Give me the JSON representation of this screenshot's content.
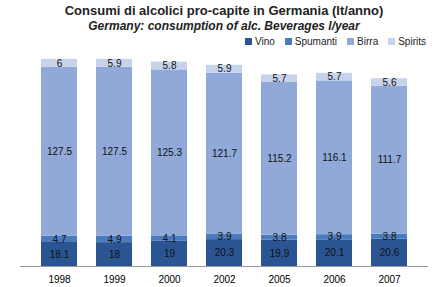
{
  "chart_data": {
    "type": "bar",
    "title": "Consumi di alcolici pro-capite in Germania  (lt/anno)",
    "subtitle": "Germany: consumption of alc. Beverages l/year",
    "categories": [
      "1998",
      "1999",
      "2000",
      "2002",
      "2005",
      "2006",
      "2007"
    ],
    "series": [
      {
        "name": "Vino",
        "color": "#2a5592",
        "values": [
          18.1,
          18,
          19,
          20.3,
          19.9,
          20.1,
          20.6
        ]
      },
      {
        "name": "Spumanti",
        "color": "#4a7bbd",
        "values": [
          4.7,
          4.9,
          4.1,
          3.9,
          3.8,
          3.9,
          3.8
        ]
      },
      {
        "name": "Birra",
        "color": "#90a9d8",
        "values": [
          127.5,
          127.5,
          125.3,
          121.7,
          115.2,
          116.1,
          111.7
        ]
      },
      {
        "name": "Spirits",
        "color": "#c6d3ea",
        "values": [
          6,
          5.9,
          5.8,
          5.9,
          5.7,
          5.7,
          5.6
        ]
      }
    ],
    "ylim": [
      0,
      160
    ],
    "stacked": true,
    "data_labels": true,
    "tick_labels": "x",
    "legend": "top-right"
  }
}
